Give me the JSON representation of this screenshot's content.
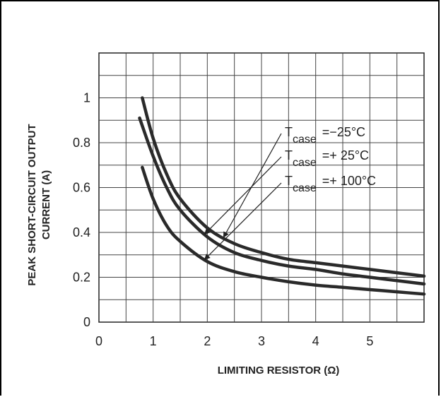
{
  "chart_data": {
    "type": "line",
    "xlabel": "LIMITING RESISTOR (Ω)",
    "ylabel_line1": "PEAK SHORT-CIRCUIT OUTPUT",
    "ylabel_line2": "CURRENT (A)",
    "xlim": [
      0,
      6
    ],
    "ylim": [
      0,
      1.2
    ],
    "x_ticks": [
      "0",
      "1",
      "2",
      "3",
      "4",
      "5"
    ],
    "y_ticks": [
      "0",
      "0.2",
      "0.4",
      "0.6",
      "0.8",
      "1"
    ],
    "grid": true,
    "series": [
      {
        "name": "Tcase = −25°C",
        "name_main": "T",
        "name_sub": "case",
        "name_rest": "=−25°C",
        "x": [
          0.8,
          1.0,
          1.25,
          1.5,
          2.0,
          2.5,
          3.0,
          3.5,
          4.0,
          4.5,
          5.0,
          5.5,
          6.0
        ],
        "y": [
          1.0,
          0.82,
          0.66,
          0.55,
          0.42,
          0.35,
          0.31,
          0.28,
          0.265,
          0.25,
          0.235,
          0.22,
          0.205
        ]
      },
      {
        "name": "Tcase = + 25°C",
        "name_main": "T",
        "name_sub": "case",
        "name_rest": "=+ 25°C",
        "x": [
          0.75,
          1.0,
          1.25,
          1.5,
          2.0,
          2.5,
          3.0,
          3.5,
          4.0,
          4.5,
          5.0,
          5.5,
          6.0
        ],
        "y": [
          0.91,
          0.74,
          0.6,
          0.5,
          0.38,
          0.31,
          0.275,
          0.25,
          0.235,
          0.215,
          0.2,
          0.185,
          0.17
        ]
      },
      {
        "name": "Tcase = + 100°C",
        "name_main": "T",
        "name_sub": "case",
        "name_rest": "=+ 100°C",
        "x": [
          0.8,
          1.0,
          1.25,
          1.5,
          2.0,
          2.5,
          3.0,
          3.5,
          4.0,
          4.5,
          5.0,
          5.5,
          6.0
        ],
        "y": [
          0.69,
          0.55,
          0.43,
          0.36,
          0.27,
          0.225,
          0.2,
          0.18,
          0.165,
          0.155,
          0.145,
          0.135,
          0.125
        ]
      }
    ],
    "line_color": "#2a2a2a"
  }
}
